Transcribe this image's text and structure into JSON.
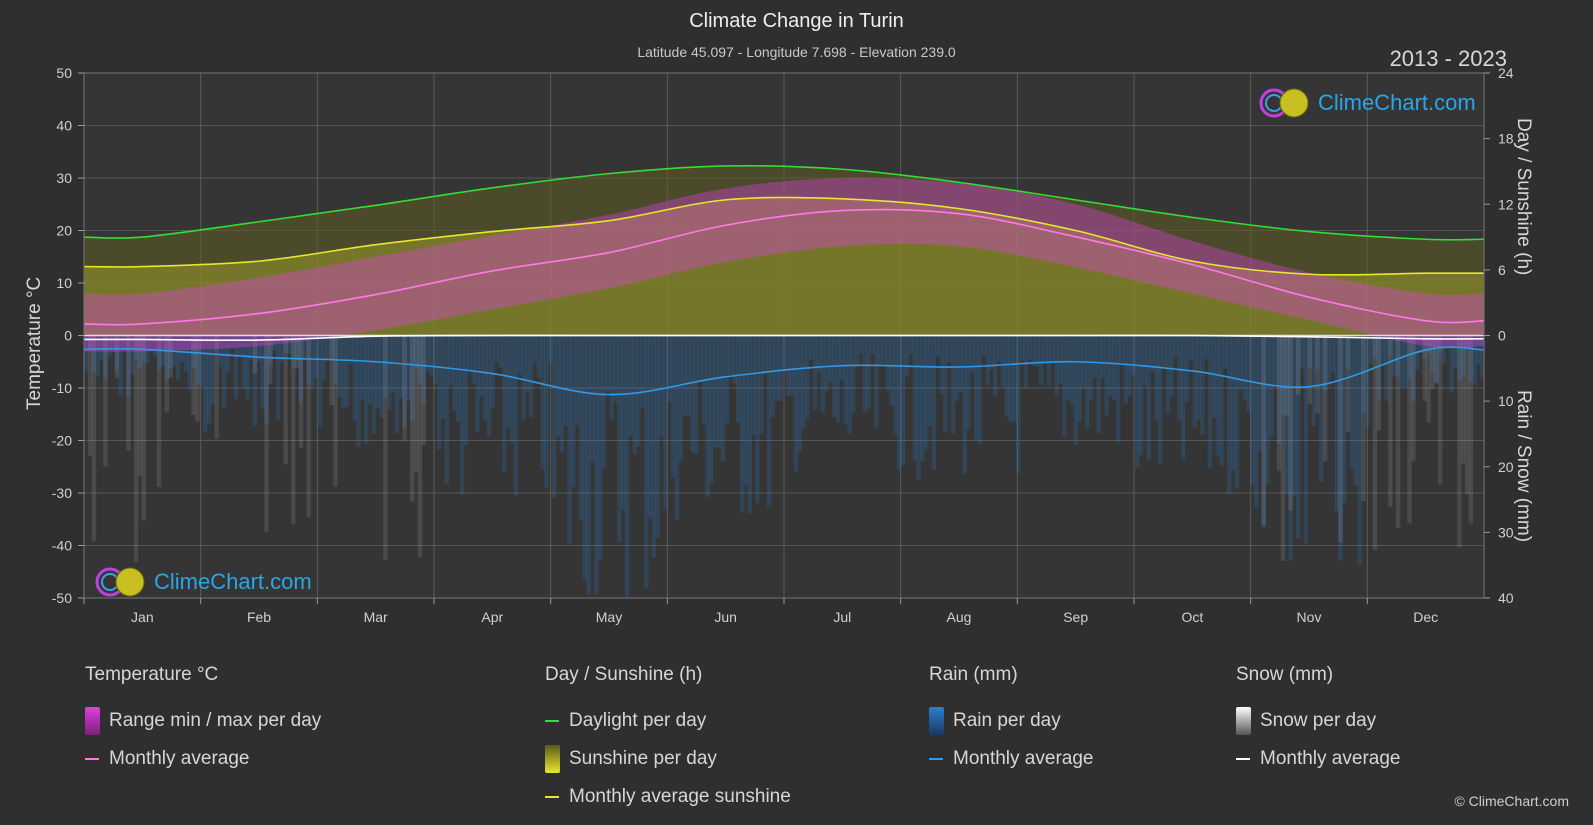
{
  "header": {
    "title": "Climate Change in Turin",
    "subtitle": "Latitude 45.097 - Longitude 7.698 - Elevation 239.0",
    "years": "2013 - 2023"
  },
  "axes": {
    "left_title": "Temperature °C",
    "right_top_title": "Day / Sunshine (h)",
    "right_bottom_title": "Rain / Snow (mm)"
  },
  "logo_text": "ClimeChart.com",
  "copyright": "© ClimeChart.com",
  "legend": {
    "temperature": {
      "heading": "Temperature °C",
      "range": "Range min / max per day",
      "avg": "Monthly average"
    },
    "sunshine": {
      "heading": "Day / Sunshine (h)",
      "daylight": "Daylight per day",
      "sunshine": "Sunshine per day",
      "avg": "Monthly average sunshine"
    },
    "rain": {
      "heading": "Rain (mm)",
      "per_day": "Rain per day",
      "avg": "Monthly average"
    },
    "snow": {
      "heading": "Snow (mm)",
      "per_day": "Snow per day",
      "avg": "Monthly average"
    }
  },
  "colors": {
    "background": "#2f2f2f",
    "temp_range": "#e040e0",
    "temp_avg": "#ff7ae8",
    "daylight": "#33dd33",
    "sunshine_fill": "#9a9a2a",
    "sunshine_avg": "#e6e630",
    "rain": "#2a7fd0",
    "rain_avg": "#2f9ae8",
    "snow": "#bdbdbd",
    "snow_avg": "#ffffff"
  },
  "chart_data": {
    "type": "area",
    "categories": [
      "Jan",
      "Feb",
      "Mar",
      "Apr",
      "May",
      "Jun",
      "Jul",
      "Aug",
      "Sep",
      "Oct",
      "Nov",
      "Dec"
    ],
    "y_left": {
      "label": "Temperature °C",
      "range": [
        -50,
        50
      ],
      "ticks": [
        50,
        40,
        30,
        20,
        10,
        0,
        -10,
        -20,
        -30,
        -40,
        -50
      ]
    },
    "y_right_top": {
      "label": "Day / Sunshine (h)",
      "range": [
        0,
        24
      ],
      "ticks": [
        24,
        18,
        12,
        6,
        0
      ]
    },
    "y_right_bottom": {
      "label": "Rain / Snow (mm)",
      "range": [
        0,
        40
      ],
      "ticks": [
        0,
        10,
        20,
        30,
        40
      ]
    },
    "series": [
      {
        "name": "Daylight per day",
        "axis": "hours",
        "values": [
          9.0,
          10.4,
          11.9,
          13.5,
          14.8,
          15.5,
          15.2,
          14.0,
          12.4,
          10.8,
          9.5,
          8.8
        ]
      },
      {
        "name": "Monthly average sunshine",
        "axis": "hours",
        "values": [
          6.3,
          6.8,
          8.3,
          9.5,
          10.5,
          12.4,
          12.5,
          11.6,
          9.6,
          6.8,
          5.6,
          5.7
        ]
      },
      {
        "name": "Temperature monthly average",
        "axis": "temperature",
        "values": [
          2.2,
          4.2,
          7.8,
          12.3,
          15.8,
          21.0,
          23.8,
          23.2,
          18.8,
          13.5,
          7.3,
          2.8
        ]
      },
      {
        "name": "Temperature daily max (approx.)",
        "axis": "temperature",
        "values": [
          8,
          11,
          15,
          19,
          23,
          28,
          30,
          29,
          25,
          18,
          12,
          8
        ]
      },
      {
        "name": "Temperature daily min (approx.)",
        "axis": "temperature",
        "values": [
          -3,
          -2,
          1,
          5,
          9,
          14,
          17,
          17,
          13,
          8,
          3,
          -2
        ]
      },
      {
        "name": "Rain monthly average",
        "axis": "mm",
        "values": [
          2.1,
          3.3,
          4.0,
          5.8,
          9.0,
          6.3,
          4.6,
          4.8,
          4.0,
          5.4,
          7.8,
          2.2
        ]
      },
      {
        "name": "Snow monthly average",
        "axis": "mm",
        "values": [
          0.6,
          0.7,
          0.1,
          0,
          0,
          0,
          0,
          0,
          0,
          0,
          0.2,
          0.5
        ]
      }
    ],
    "grid": true
  }
}
